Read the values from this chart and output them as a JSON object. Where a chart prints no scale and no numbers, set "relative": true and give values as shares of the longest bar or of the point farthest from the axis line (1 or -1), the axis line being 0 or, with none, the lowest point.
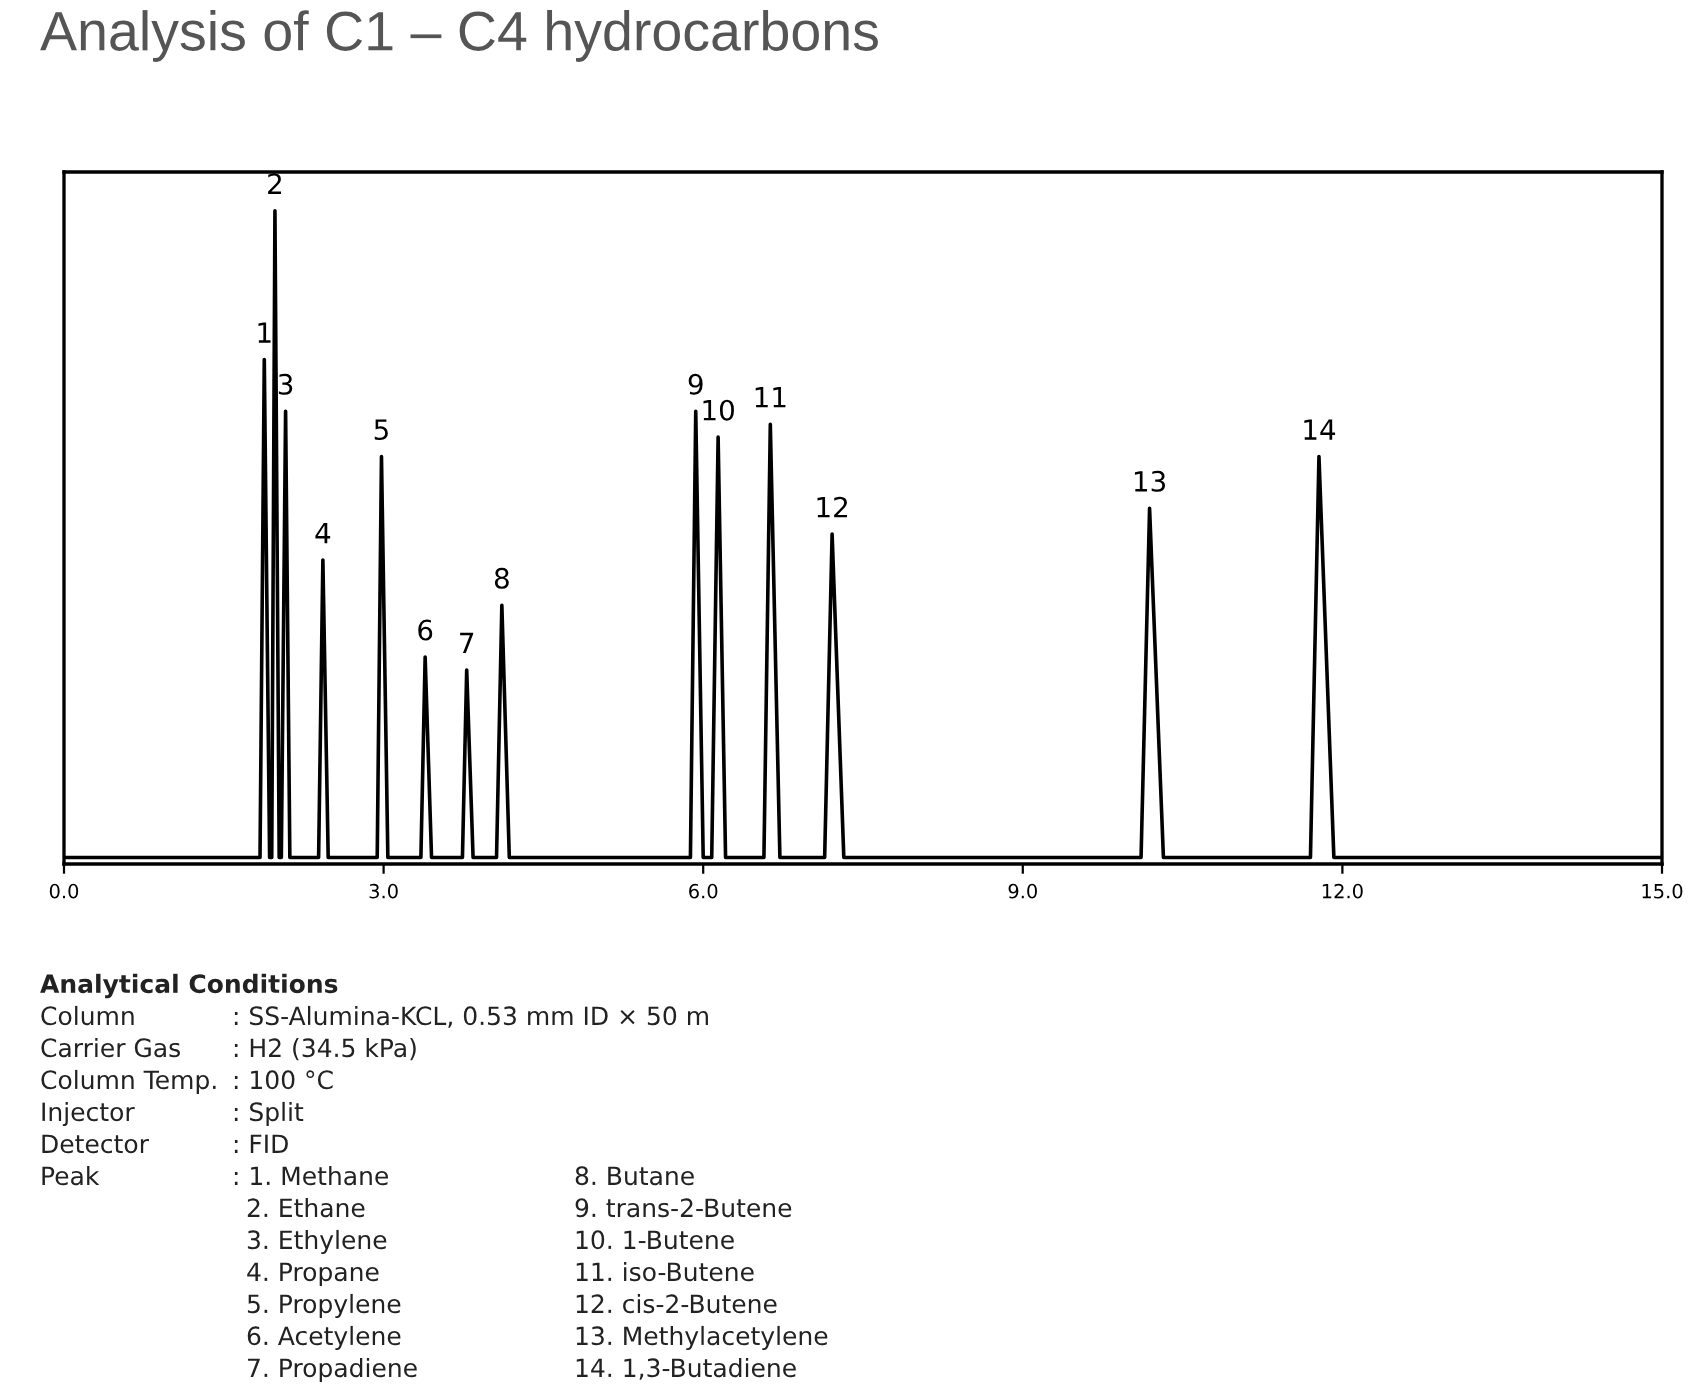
{
  "chart_data": {
    "type": "line",
    "title": "Analysis of C1 – C4 hydrocarbons",
    "relative": true,
    "xlim": [
      0,
      15
    ],
    "xticks": [
      {
        "value": 0,
        "label": "0.0"
      },
      {
        "value": 3,
        "label": "3.0"
      },
      {
        "value": 6,
        "label": "6.0"
      },
      {
        "value": 9,
        "label": "9.0"
      },
      {
        "value": 12,
        "label": "12.0"
      },
      {
        "value": 15,
        "label": "15.0"
      }
    ],
    "grid": false,
    "marker": "none",
    "line_style": "solid",
    "series": [
      {
        "color": "#000000",
        "x": [
          0,
          1.84,
          1.88,
          1.93,
          1.95,
          1.98,
          2.02,
          2.04,
          2.08,
          2.12,
          2.39,
          2.43,
          2.48,
          2.94,
          2.98,
          3.04,
          3.35,
          3.39,
          3.45,
          3.74,
          3.78,
          3.84,
          4.06,
          4.11,
          4.18,
          5.88,
          5.93,
          6.0,
          6.08,
          6.14,
          6.21,
          6.57,
          6.63,
          6.72,
          7.14,
          7.21,
          7.32,
          10.11,
          10.19,
          10.32,
          11.7,
          11.78,
          11.92,
          15
        ],
        "values": [
          0,
          0,
          0.77,
          0,
          0,
          1.0,
          0,
          0,
          0.69,
          0,
          0,
          0.46,
          0,
          0,
          0.62,
          0,
          0,
          0.31,
          0,
          0,
          0.29,
          0,
          0,
          0.39,
          0,
          0,
          0.69,
          0,
          0,
          0.65,
          0,
          0,
          0.67,
          0,
          0,
          0.5,
          0,
          0,
          0.54,
          0,
          0,
          0.62,
          0,
          0
        ]
      }
    ],
    "annotations": [
      {
        "text": "1",
        "x": 1.88,
        "y": 0.77
      },
      {
        "text": "2",
        "x": 1.98,
        "y": 1.0
      },
      {
        "text": "3",
        "x": 2.08,
        "y": 0.69
      },
      {
        "text": "4",
        "x": 2.43,
        "y": 0.46
      },
      {
        "text": "5",
        "x": 2.98,
        "y": 0.62
      },
      {
        "text": "6",
        "x": 3.39,
        "y": 0.31
      },
      {
        "text": "7",
        "x": 3.78,
        "y": 0.29
      },
      {
        "text": "8",
        "x": 4.11,
        "y": 0.39
      },
      {
        "text": "9",
        "x": 5.93,
        "y": 0.69
      },
      {
        "text": "10",
        "x": 6.14,
        "y": 0.65
      },
      {
        "text": "11",
        "x": 6.63,
        "y": 0.67
      },
      {
        "text": "12",
        "x": 7.21,
        "y": 0.5
      },
      {
        "text": "13",
        "x": 10.19,
        "y": 0.54
      },
      {
        "text": "14",
        "x": 11.78,
        "y": 0.62
      },
      "Analytical Conditions",
      "Column",
      ": SS-Alumina-KCL, 0.53 mm ID × 50 m",
      "Carrier Gas",
      ": H2 (34.5 kPa)",
      "Column Temp.",
      ": 100 °C",
      "Injector",
      ": Split",
      "Detector",
      ": FID",
      "Peak",
      ": 1. Methane",
      "2. Ethane",
      "3. Ethylene",
      "4. Propane",
      "5. Propylene",
      "6. Acetylene",
      "7. Propadiene",
      "8. Butane",
      "9. trans-2-Butene",
      "10. 1-Butene",
      "11. iso-Butene",
      "12. cis-2-Butene",
      "13. Methylacetylene",
      "14. 1,3-Butadiene"
    ]
  }
}
